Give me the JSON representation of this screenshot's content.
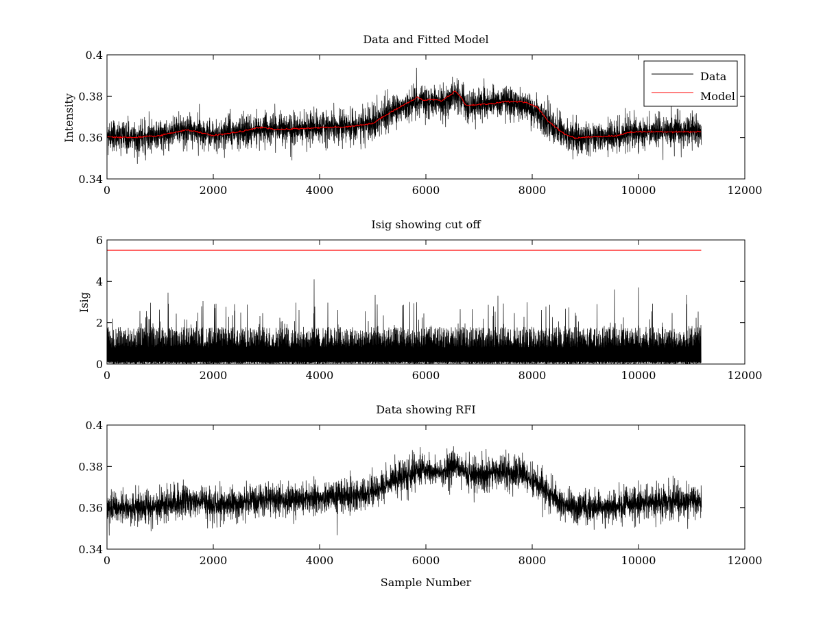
{
  "chart_data": [
    {
      "type": "line",
      "title": "Data and Fitted Model",
      "xlabel": "",
      "ylabel": "Intensity",
      "xlim": [
        0,
        12000
      ],
      "ylim": [
        0.34,
        0.4
      ],
      "xticks": [
        0,
        2000,
        4000,
        6000,
        8000,
        10000,
        12000
      ],
      "xtick_labels": [
        "0",
        "2000",
        "4000",
        "6000",
        "8000",
        "10000",
        "12000"
      ],
      "yticks": [
        0.34,
        0.36,
        0.38,
        0.4
      ],
      "ytick_labels": [
        "0.34",
        "0.36",
        "0.38",
        "0.4"
      ],
      "grid": false,
      "legend": "top-right",
      "series": [
        {
          "name": "Data",
          "color": "#000000",
          "kind": "noisy",
          "x": [
            0,
            500,
            1000,
            1500,
            2000,
            2500,
            3000,
            3500,
            4000,
            4500,
            5000,
            5300,
            5600,
            5900,
            6100,
            6300,
            6500,
            6600,
            6750,
            7000,
            7400,
            7800,
            8100,
            8400,
            8700,
            9000,
            9500,
            10000,
            10500,
            11180
          ],
          "y": [
            0.3605,
            0.36,
            0.3612,
            0.3638,
            0.3612,
            0.3625,
            0.3645,
            0.364,
            0.365,
            0.3655,
            0.3672,
            0.372,
            0.3755,
            0.3785,
            0.3775,
            0.377,
            0.38,
            0.381,
            0.3755,
            0.376,
            0.3775,
            0.376,
            0.372,
            0.365,
            0.3605,
            0.36,
            0.3605,
            0.3625,
            0.363,
            0.363
          ],
          "noise_amplitude": 0.0045,
          "x_end": 11180
        },
        {
          "name": "Model",
          "color": "#ff0000",
          "kind": "line",
          "x": [
            0,
            500,
            1000,
            1500,
            2000,
            2500,
            2900,
            3200,
            3500,
            4000,
            4500,
            5000,
            5300,
            5600,
            5850,
            5950,
            6100,
            6300,
            6450,
            6550,
            6650,
            6750,
            7000,
            7300,
            7500,
            7900,
            8100,
            8300,
            8600,
            8800,
            9200,
            9600,
            9800,
            10000,
            10500,
            11180
          ],
          "y": [
            0.3602,
            0.36,
            0.361,
            0.3638,
            0.361,
            0.3628,
            0.365,
            0.3638,
            0.3642,
            0.3648,
            0.3652,
            0.3668,
            0.3718,
            0.376,
            0.3795,
            0.378,
            0.3785,
            0.3778,
            0.3805,
            0.3825,
            0.38,
            0.3755,
            0.376,
            0.3765,
            0.3775,
            0.377,
            0.3745,
            0.368,
            0.3618,
            0.3598,
            0.3605,
            0.3608,
            0.3625,
            0.3628,
            0.3628,
            0.3628
          ]
        }
      ]
    },
    {
      "type": "line",
      "title": "Isig showing cut off",
      "xlabel": "",
      "ylabel": "Isig",
      "xlim": [
        0,
        12000
      ],
      "ylim": [
        0,
        6
      ],
      "xticks": [
        0,
        2000,
        4000,
        6000,
        8000,
        10000,
        12000
      ],
      "xtick_labels": [
        "0",
        "2000",
        "4000",
        "6000",
        "8000",
        "10000",
        "12000"
      ],
      "yticks": [
        0,
        2,
        4,
        6
      ],
      "ytick_labels": [
        "0",
        "2",
        "4",
        "6"
      ],
      "grid": false,
      "series": [
        {
          "color": "#000000",
          "kind": "spiky",
          "x_end": 11180,
          "typical_max": 1.8,
          "peaks": [
            {
              "x": 1150,
              "y": 3.45
            },
            {
              "x": 1800,
              "y": 3.05
            },
            {
              "x": 3900,
              "y": 4.1
            },
            {
              "x": 5050,
              "y": 3.35
            },
            {
              "x": 7350,
              "y": 3.3
            },
            {
              "x": 9550,
              "y": 3.6
            },
            {
              "x": 10000,
              "y": 3.7
            },
            {
              "x": 10900,
              "y": 3.35
            }
          ]
        },
        {
          "color": "#ff0000",
          "kind": "line",
          "x": [
            0,
            11180
          ],
          "y": [
            5.5,
            5.5
          ]
        }
      ]
    },
    {
      "type": "line",
      "title": "Data showing RFI",
      "xlabel": "Sample Number",
      "ylabel": "",
      "xlim": [
        0,
        12000
      ],
      "ylim": [
        0.34,
        0.4
      ],
      "xticks": [
        0,
        2000,
        4000,
        6000,
        8000,
        10000,
        12000
      ],
      "xtick_labels": [
        "0",
        "2000",
        "4000",
        "6000",
        "8000",
        "10000",
        "12000"
      ],
      "yticks": [
        0.34,
        0.36,
        0.38,
        0.4
      ],
      "ytick_labels": [
        "0.34",
        "0.36",
        "0.38",
        "0.4"
      ],
      "grid": false,
      "series": [
        {
          "color": "#000000",
          "kind": "noisy",
          "x": [
            0,
            500,
            1000,
            1500,
            2000,
            2500,
            3000,
            3500,
            4000,
            4500,
            5000,
            5300,
            5600,
            5900,
            6100,
            6300,
            6500,
            6600,
            6750,
            7000,
            7400,
            7800,
            8100,
            8400,
            8700,
            9000,
            9500,
            10000,
            10500,
            11180
          ],
          "y": [
            0.3605,
            0.36,
            0.3612,
            0.3638,
            0.3612,
            0.3625,
            0.3645,
            0.364,
            0.365,
            0.3655,
            0.3672,
            0.372,
            0.3755,
            0.3785,
            0.3775,
            0.377,
            0.38,
            0.381,
            0.3755,
            0.376,
            0.3775,
            0.376,
            0.372,
            0.365,
            0.3605,
            0.36,
            0.3605,
            0.3625,
            0.363,
            0.363
          ],
          "noise_amplitude": 0.0045,
          "x_end": 11180
        }
      ]
    }
  ]
}
